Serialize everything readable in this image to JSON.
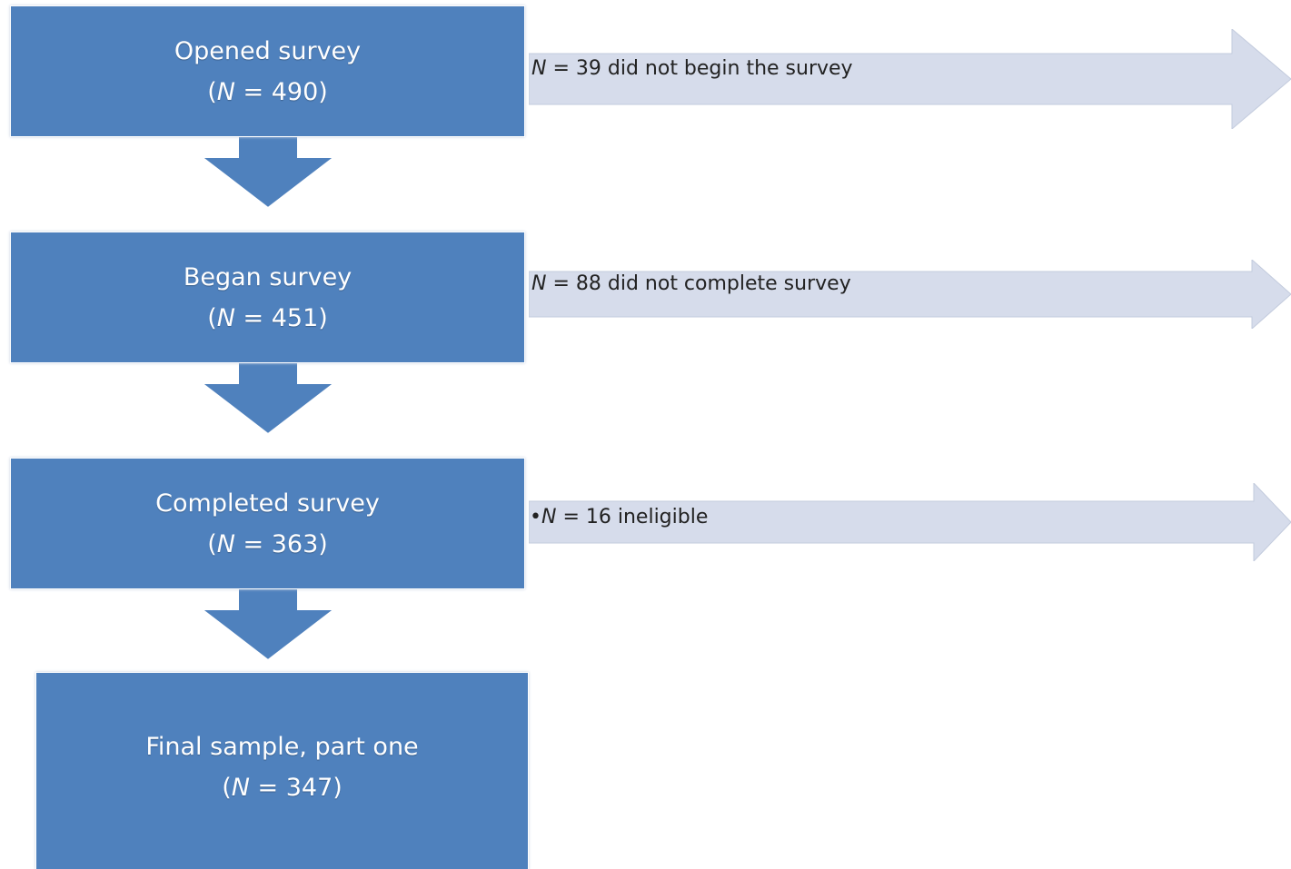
{
  "colors": {
    "box_fill": "#4f81bd",
    "box_text": "#ffffff",
    "side_arrow_fill": "#d6dceb",
    "side_text": "#222222"
  },
  "steps": [
    {
      "title": "Opened survey",
      "n_symbol": "N",
      "count_text": " = 490)"
    },
    {
      "title": "Began survey",
      "n_symbol": "N",
      "count_text": " = 451)"
    },
    {
      "title": "Completed survey",
      "n_symbol": "N",
      "count_text": " = 363)"
    },
    {
      "title": "Final sample, part one",
      "n_symbol": "N",
      "count_text": " = 347)"
    }
  ],
  "count_prefix": "(",
  "exclusions": [
    {
      "bullet": "",
      "n_symbol": "N",
      "text": " = 39 did not begin the survey"
    },
    {
      "bullet": "",
      "n_symbol": "N",
      "text": " = 88 did not complete survey"
    },
    {
      "bullet": "•",
      "n_symbol": "N",
      "text": " = 16 ineligible"
    }
  ]
}
